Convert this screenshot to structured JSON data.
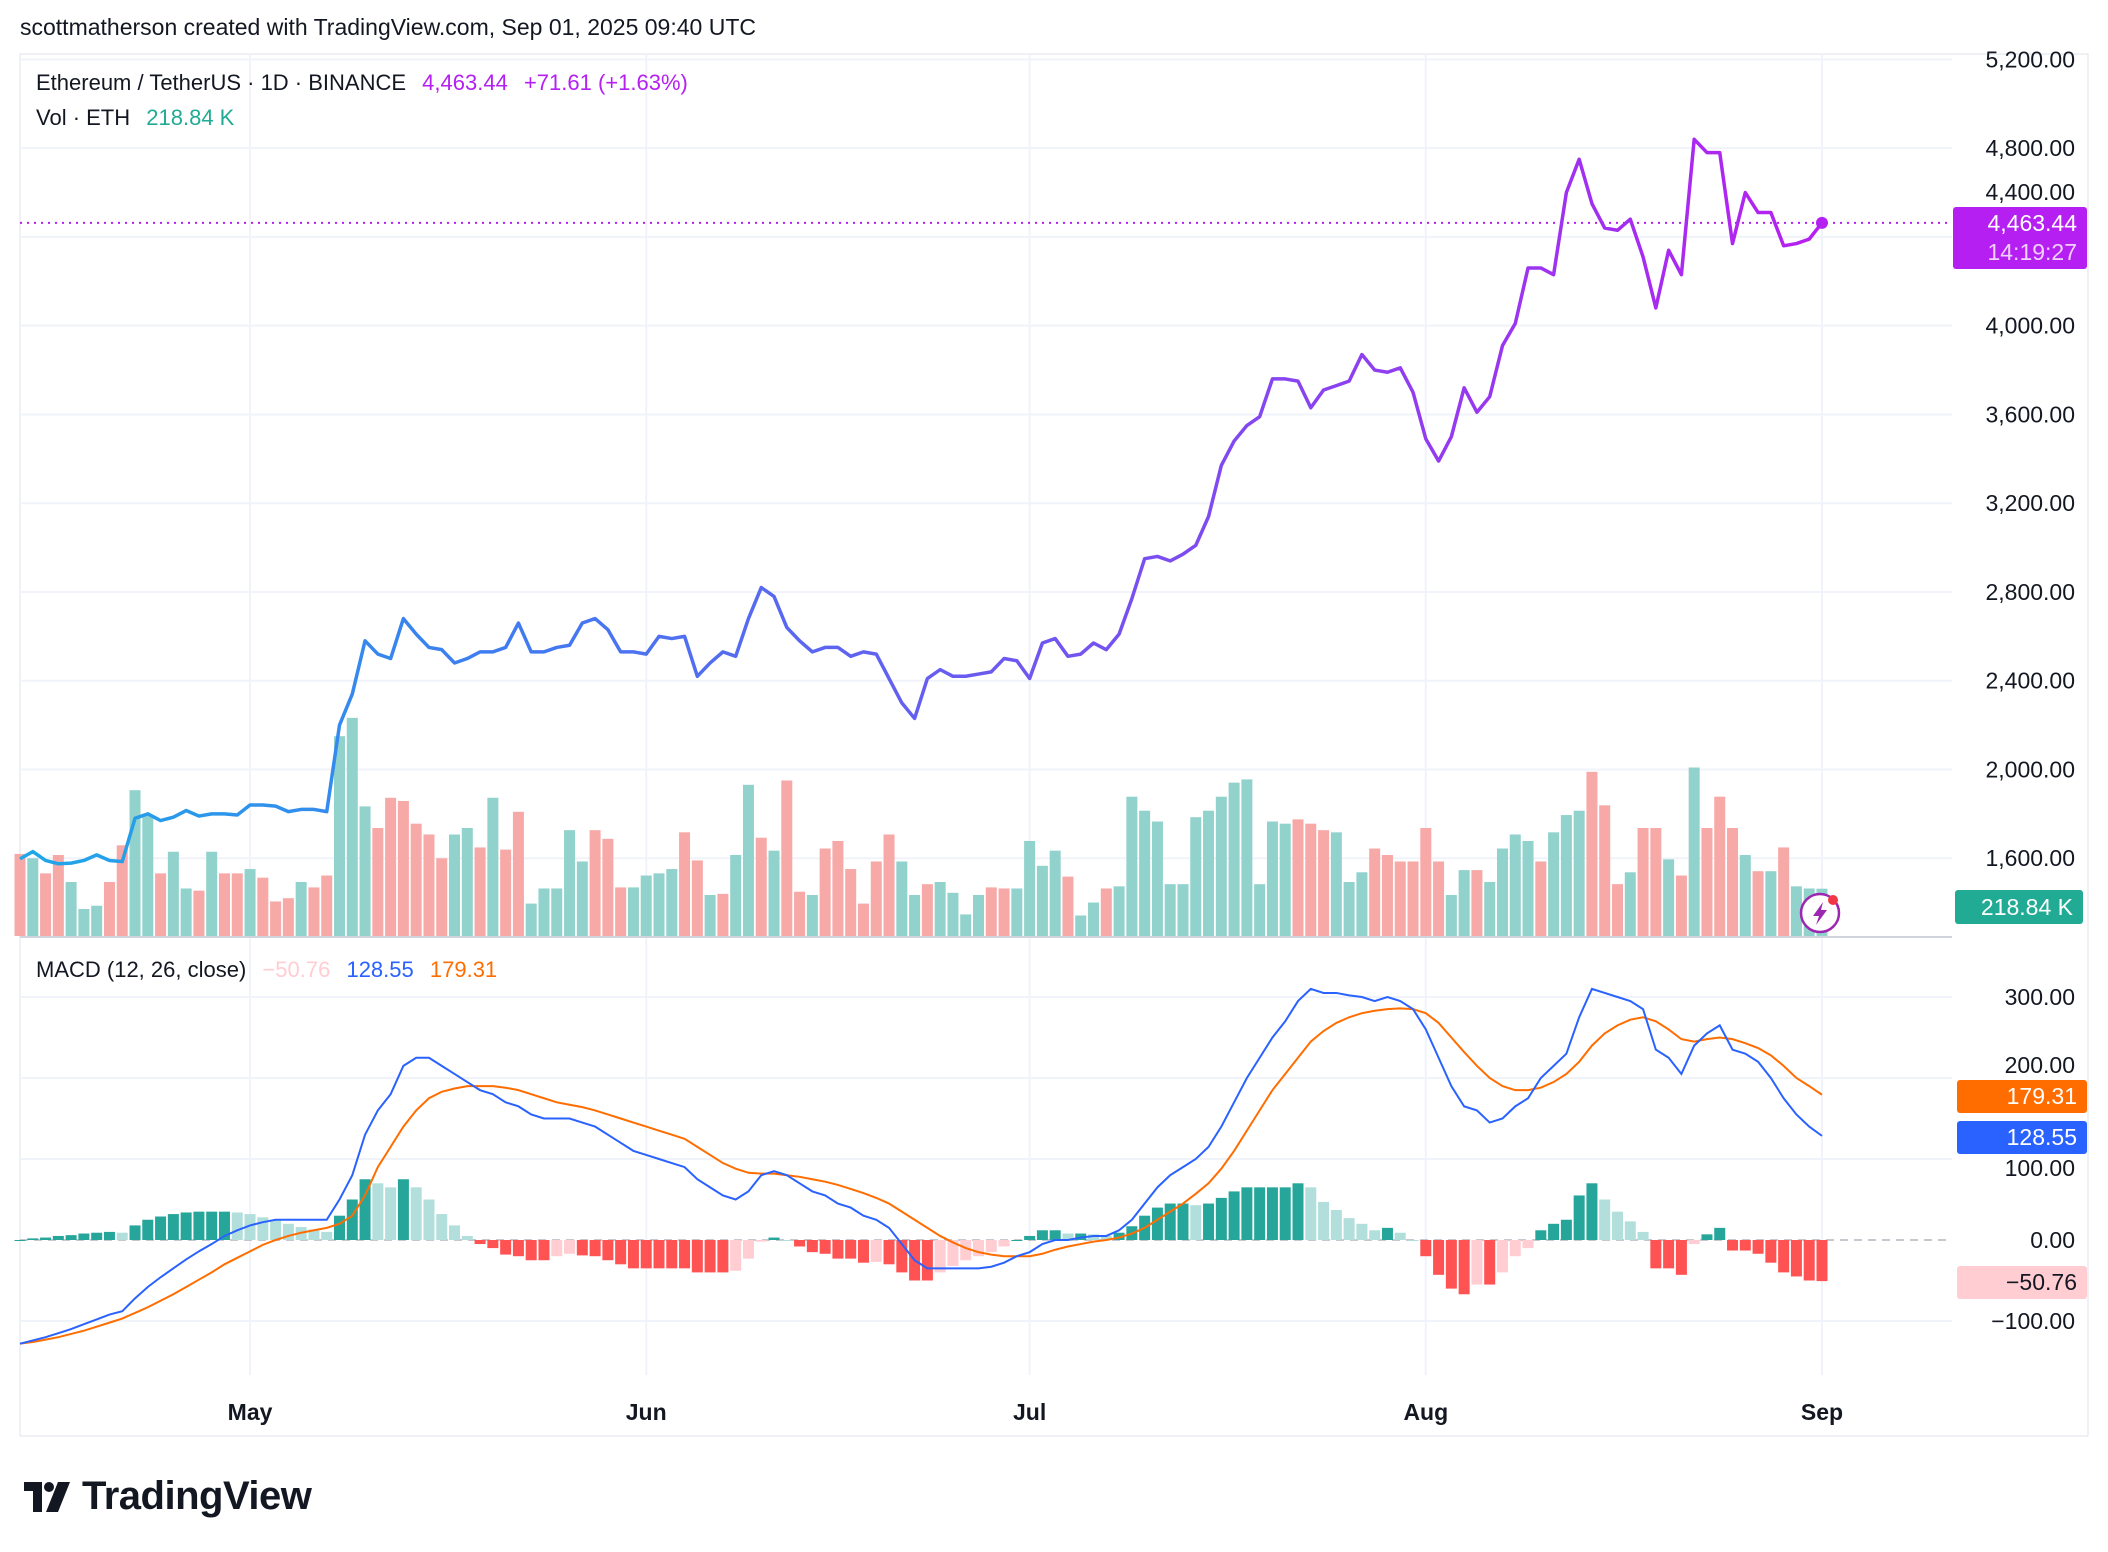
{
  "header": {
    "credit": "scottmatherson created with TradingView.com, Sep 01, 2025 09:40 UTC"
  },
  "legend": {
    "symbol": "Ethereum / TetherUS · 1D · BINANCE",
    "price": "4,463.44",
    "change": "+71.61 (+1.63%)",
    "vol_label": "Vol · ETH",
    "vol_value": "218.84 K",
    "macd_label": "MACD (12, 26, close)",
    "macd_hist": "−50.76",
    "macd_value": "128.55",
    "macd_signal": "179.31"
  },
  "tags": {
    "price": "4,463.44",
    "countdown": "14:19:27",
    "volume": "218.84 K",
    "signal": "179.31",
    "macd": "128.55",
    "hist": "−50.76"
  },
  "colors": {
    "price_line_start": "#1fa8e8",
    "price_line_mid": "#3d7ef0",
    "price_line_end": "#b620f0",
    "vol_up": "#92d2cc",
    "vol_down": "#f7a9a7",
    "macd_line": "#2962ff",
    "signal_line": "#ff6d00",
    "hist_up_strong": "#26a69a",
    "hist_up_weak": "#b2dfdb",
    "hist_down_strong": "#ff5252",
    "hist_down_weak": "#ffcdd2",
    "volume_tag": "#22ab94",
    "price_tag": "#b51ff2"
  },
  "logo": {
    "text": "TradingView"
  },
  "chart_data": [
    {
      "type": "line",
      "title": "Ethereum / TetherUS · 1D · BINANCE",
      "x_start": "2025-04-13",
      "x_end": "2025-09-01",
      "x_ticks": [
        "May",
        "Jun",
        "Jul",
        "Aug",
        "Sep"
      ],
      "y_ticks": [
        "5,200.00",
        "4,800.00",
        "4,400.00",
        "4,000.00",
        "3,600.00",
        "3,200.00",
        "2,800.00",
        "2,400.00",
        "2,000.00",
        "1,600.00"
      ],
      "ylim": [
        1400,
        5200
      ],
      "grid": true,
      "close": [
        1597,
        1630,
        1590,
        1575,
        1578,
        1590,
        1615,
        1590,
        1585,
        1780,
        1800,
        1770,
        1785,
        1815,
        1790,
        1800,
        1800,
        1795,
        1840,
        1840,
        1835,
        1810,
        1820,
        1820,
        1810,
        2200,
        2340,
        2580,
        2520,
        2500,
        2680,
        2610,
        2550,
        2540,
        2480,
        2500,
        2530,
        2530,
        2550,
        2660,
        2530,
        2530,
        2550,
        2560,
        2660,
        2680,
        2630,
        2530,
        2530,
        2520,
        2600,
        2590,
        2600,
        2420,
        2480,
        2530,
        2510,
        2680,
        2820,
        2780,
        2640,
        2580,
        2530,
        2550,
        2550,
        2510,
        2530,
        2520,
        2410,
        2300,
        2230,
        2410,
        2450,
        2420,
        2420,
        2430,
        2440,
        2500,
        2490,
        2410,
        2570,
        2590,
        2510,
        2520,
        2570,
        2540,
        2610,
        2770,
        2950,
        2960,
        2940,
        2970,
        3010,
        3140,
        3370,
        3480,
        3550,
        3590,
        3760,
        3760,
        3750,
        3630,
        3710,
        3730,
        3750,
        3870,
        3800,
        3790,
        3810,
        3700,
        3490,
        3390,
        3500,
        3720,
        3610,
        3680,
        3910,
        4010,
        4260,
        4260,
        4230,
        4600,
        4750,
        4550,
        4440,
        4430,
        4480,
        4310,
        4080,
        4340,
        4230,
        4840,
        4780,
        4780,
        4370,
        4600,
        4510,
        4510,
        4360,
        4370,
        4390,
        4463.44
      ],
      "last_price": 4463.44
    },
    {
      "type": "bar",
      "title": "Vol · ETH",
      "unit": "K",
      "volume_k": [
        380,
        360,
        290,
        375,
        250,
        125,
        140,
        250,
        420,
        675,
        560,
        290,
        390,
        220,
        210,
        390,
        290,
        290,
        310,
        270,
        160,
        175,
        250,
        225,
        280,
        925,
        1010,
        600,
        500,
        640,
        625,
        520,
        470,
        360,
        470,
        500,
        410,
        640,
        400,
        575,
        150,
        220,
        220,
        490,
        345,
        490,
        450,
        225,
        225,
        280,
        290,
        310,
        480,
        350,
        190,
        195,
        375,
        700,
        455,
        395,
        720,
        205,
        190,
        405,
        440,
        310,
        150,
        345,
        470,
        345,
        190,
        240,
        250,
        200,
        100,
        190,
        225,
        220,
        220,
        440,
        325,
        395,
        275,
        95,
        155,
        220,
        230,
        645,
        580,
        530,
        240,
        240,
        550,
        580,
        645,
        710,
        725,
        240,
        530,
        520,
        540,
        520,
        490,
        480,
        250,
        295,
        405,
        375,
        345,
        345,
        500,
        345,
        190,
        305,
        305,
        250,
        405,
        470,
        440,
        345,
        480,
        560,
        580,
        760,
        605,
        240,
        295,
        500,
        500,
        355,
        280,
        780,
        500,
        645,
        500,
        375,
        300,
        300,
        410,
        230,
        220,
        219
      ],
      "direction": [
        "d",
        "u",
        "d",
        "d",
        "u",
        "u",
        "u",
        "d",
        "d",
        "u",
        "u",
        "d",
        "u",
        "u",
        "d",
        "u",
        "d",
        "d",
        "u",
        "d",
        "d",
        "d",
        "u",
        "d",
        "d",
        "u",
        "u",
        "u",
        "d",
        "d",
        "d",
        "d",
        "d",
        "d",
        "u",
        "u",
        "d",
        "u",
        "d",
        "d",
        "u",
        "u",
        "u",
        "u",
        "u",
        "d",
        "d",
        "d",
        "u",
        "u",
        "u",
        "u",
        "d",
        "d",
        "u",
        "d",
        "u",
        "u",
        "d",
        "u",
        "d",
        "d",
        "u",
        "d",
        "d",
        "d",
        "d",
        "d",
        "d",
        "u",
        "u",
        "d",
        "u",
        "u",
        "u",
        "u",
        "d",
        "d",
        "u",
        "u",
        "u",
        "u",
        "d",
        "u",
        "u",
        "d",
        "u",
        "u",
        "u",
        "u",
        "u",
        "u",
        "u",
        "u",
        "u",
        "u",
        "u",
        "u",
        "u",
        "u",
        "d",
        "d",
        "d",
        "u",
        "u",
        "u",
        "d",
        "d",
        "d",
        "d",
        "d",
        "d",
        "u",
        "u",
        "d",
        "u",
        "u",
        "u",
        "u",
        "d",
        "u",
        "u",
        "u",
        "d",
        "d",
        "d",
        "u",
        "d",
        "d",
        "u",
        "d",
        "u",
        "d",
        "d",
        "d",
        "u",
        "d",
        "u",
        "d",
        "u",
        "u",
        "u"
      ],
      "last_volume_k": 218.84
    },
    {
      "type": "line",
      "title": "MACD (12, 26, close)",
      "y_ticks": [
        "300.00",
        "200.00",
        "100.00",
        "0.00",
        "−100.00"
      ],
      "ylim": [
        -130,
        320
      ],
      "macd": [
        -128,
        -124,
        -120,
        -115,
        -110,
        -104,
        -98,
        -92,
        -88,
        -72,
        -58,
        -46,
        -35,
        -24,
        -14,
        -5,
        5,
        12,
        18,
        22,
        25,
        25,
        25,
        25,
        25,
        50,
        80,
        130,
        160,
        180,
        215,
        225,
        225,
        215,
        205,
        195,
        185,
        180,
        170,
        165,
        155,
        150,
        150,
        150,
        145,
        140,
        130,
        120,
        110,
        105,
        100,
        95,
        90,
        75,
        65,
        55,
        50,
        60,
        80,
        85,
        80,
        70,
        60,
        55,
        45,
        40,
        30,
        25,
        15,
        -5,
        -25,
        -35,
        -35,
        -35,
        -35,
        -35,
        -33,
        -28,
        -20,
        -15,
        -5,
        0,
        0,
        3,
        5,
        5,
        12,
        25,
        45,
        65,
        80,
        90,
        100,
        115,
        140,
        170,
        200,
        225,
        250,
        270,
        295,
        310,
        305,
        305,
        302,
        300,
        295,
        300,
        295,
        285,
        260,
        225,
        190,
        165,
        160,
        145,
        150,
        165,
        175,
        200,
        215,
        230,
        275,
        310,
        305,
        300,
        295,
        285,
        235,
        225,
        205,
        240,
        255,
        265,
        235,
        230,
        220,
        200,
        175,
        155,
        140,
        128.55
      ],
      "signal": [
        -128,
        -126,
        -123,
        -120,
        -116,
        -112,
        -107,
        -102,
        -97,
        -90,
        -83,
        -75,
        -67,
        -58,
        -49,
        -40,
        -30,
        -22,
        -14,
        -6,
        0,
        5,
        9,
        12,
        15,
        20,
        30,
        55,
        90,
        115,
        140,
        160,
        175,
        183,
        187,
        190,
        190,
        190,
        188,
        185,
        180,
        175,
        170,
        167,
        164,
        160,
        155,
        150,
        145,
        140,
        135,
        130,
        125,
        115,
        105,
        95,
        88,
        83,
        82,
        82,
        80,
        78,
        75,
        72,
        68,
        63,
        58,
        52,
        45,
        35,
        25,
        15,
        5,
        -3,
        -10,
        -15,
        -18,
        -20,
        -20,
        -20,
        -17,
        -12,
        -8,
        -5,
        -2,
        0,
        3,
        8,
        15,
        25,
        35,
        45,
        57,
        70,
        88,
        110,
        135,
        160,
        185,
        205,
        225,
        245,
        258,
        268,
        275,
        280,
        283,
        285,
        286,
        285,
        280,
        268,
        250,
        232,
        215,
        200,
        190,
        185,
        185,
        188,
        195,
        205,
        220,
        240,
        255,
        265,
        272,
        275,
        270,
        260,
        248,
        245,
        248,
        250,
        248,
        243,
        237,
        228,
        215,
        200,
        190,
        179.31
      ],
      "last_histogram": -50.76
    }
  ]
}
